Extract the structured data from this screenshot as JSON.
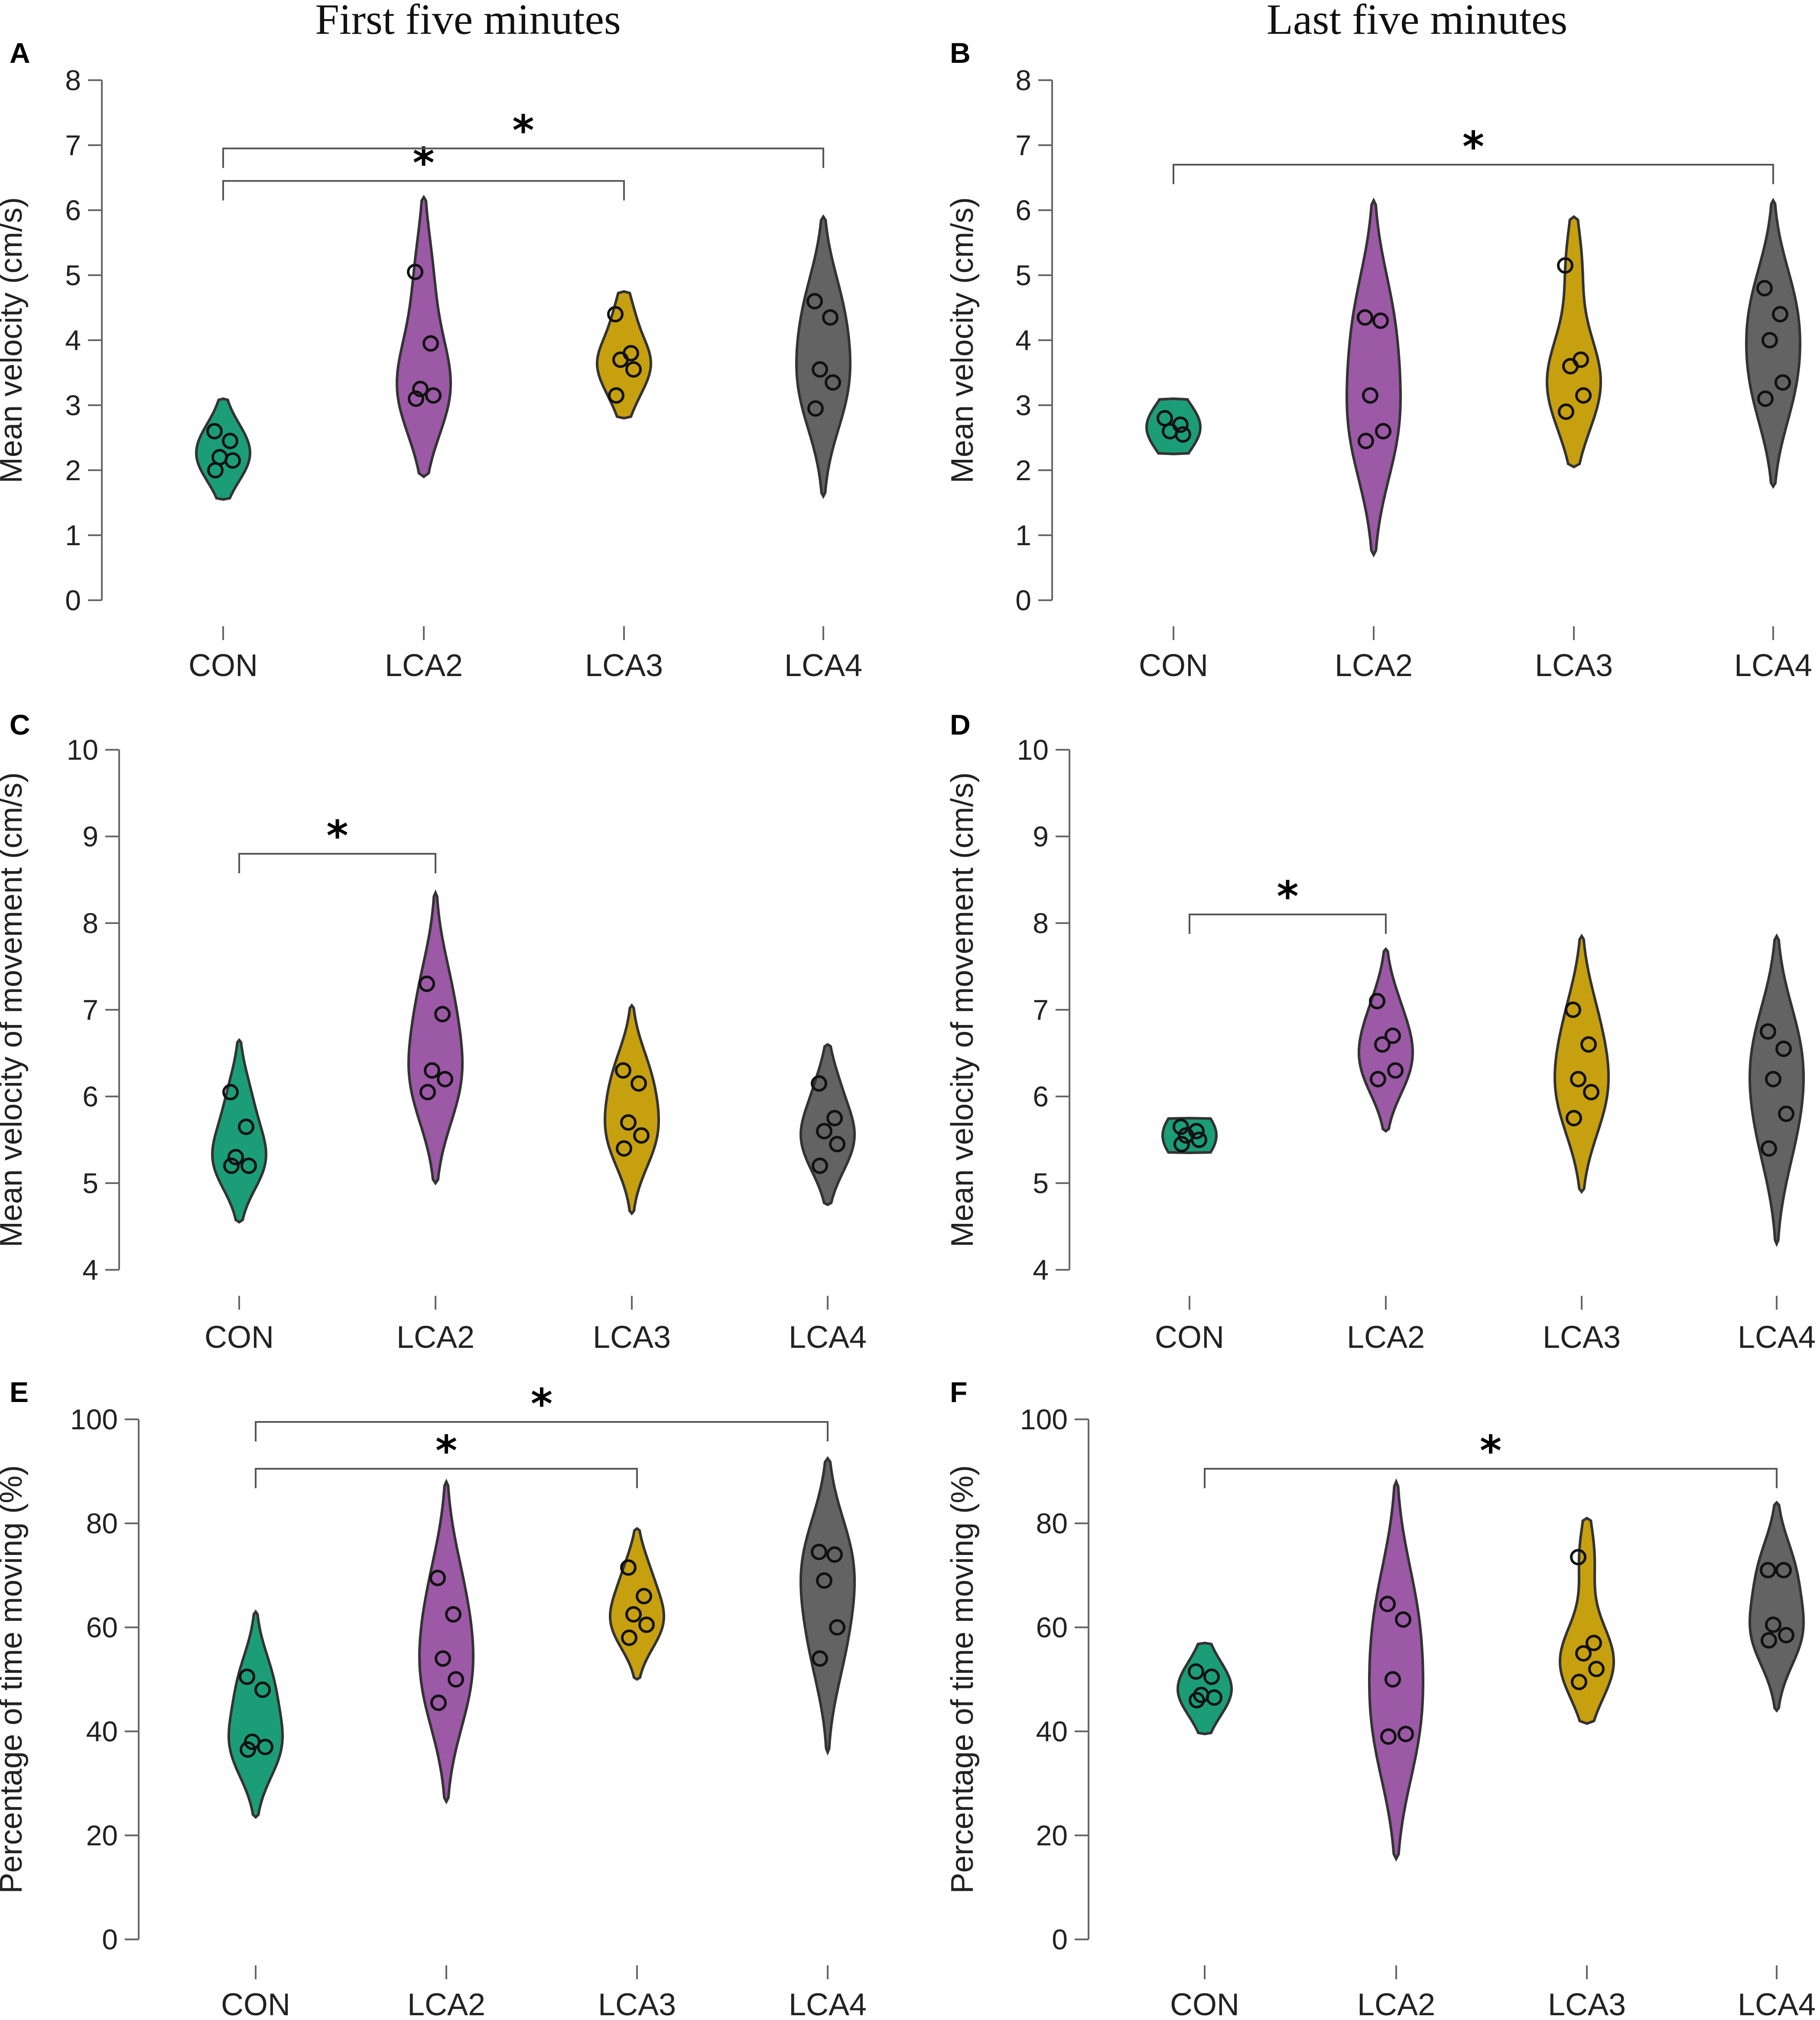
{
  "figure": {
    "column_titles": [
      "First five minutes",
      "Last five minutes"
    ]
  },
  "chart_data": [
    {
      "panel": "A",
      "type": "violin",
      "ylabel": "Mean velocity (cm/s)",
      "ylim": [
        0,
        8
      ],
      "yticks": [
        0,
        1,
        2,
        3,
        4,
        5,
        6,
        7,
        8
      ],
      "categories": [
        "CON",
        "LCA2",
        "LCA3",
        "LCA4"
      ],
      "colors": [
        "#1b9e77",
        "#9b59a6",
        "#c6a00f",
        "#636363"
      ],
      "series": [
        {
          "name": "CON",
          "points": [
            2.6,
            2.45,
            2.2,
            2.15,
            2.0
          ],
          "range": [
            1.55,
            3.1
          ]
        },
        {
          "name": "LCA2",
          "points": [
            5.05,
            3.95,
            3.25,
            3.15,
            3.1
          ],
          "range": [
            1.9,
            6.2
          ]
        },
        {
          "name": "LCA3",
          "points": [
            4.4,
            3.8,
            3.7,
            3.55,
            3.15
          ],
          "range": [
            2.8,
            4.75
          ]
        },
        {
          "name": "LCA4",
          "points": [
            4.6,
            4.35,
            3.55,
            3.35,
            2.95
          ],
          "range": [
            1.6,
            5.9
          ]
        }
      ],
      "significance": [
        {
          "from": "CON",
          "to": "LCA3",
          "label": "*",
          "y": 6.45
        },
        {
          "from": "CON",
          "to": "LCA4",
          "label": "*",
          "y": 6.95
        }
      ]
    },
    {
      "panel": "B",
      "type": "violin",
      "ylabel": "Mean velocity (cm/s)",
      "ylim": [
        0,
        8
      ],
      "yticks": [
        0,
        1,
        2,
        3,
        4,
        5,
        6,
        7,
        8
      ],
      "categories": [
        "CON",
        "LCA2",
        "LCA3",
        "LCA4"
      ],
      "colors": [
        "#1b9e77",
        "#9b59a6",
        "#c6a00f",
        "#636363"
      ],
      "series": [
        {
          "name": "CON",
          "points": [
            2.8,
            2.7,
            2.6,
            2.55
          ],
          "range": [
            2.25,
            3.1
          ]
        },
        {
          "name": "LCA2",
          "points": [
            4.35,
            4.3,
            3.15,
            2.6,
            2.45
          ],
          "range": [
            0.7,
            6.15
          ]
        },
        {
          "name": "LCA3",
          "points": [
            5.15,
            3.7,
            3.6,
            3.15,
            2.9
          ],
          "range": [
            2.05,
            5.9
          ]
        },
        {
          "name": "LCA4",
          "points": [
            4.8,
            4.4,
            4.0,
            3.35,
            3.1
          ],
          "range": [
            1.75,
            6.15
          ]
        }
      ],
      "significance": [
        {
          "from": "CON",
          "to": "LCA4",
          "label": "*",
          "y": 6.7
        }
      ]
    },
    {
      "panel": "C",
      "type": "violin",
      "ylabel": "Mean velocity of movement (cm/s)",
      "ylim": [
        4,
        10
      ],
      "yticks": [
        4,
        5,
        6,
        7,
        8,
        9,
        10
      ],
      "categories": [
        "CON",
        "LCA2",
        "LCA3",
        "LCA4"
      ],
      "colors": [
        "#1b9e77",
        "#9b59a6",
        "#c6a00f",
        "#636363"
      ],
      "series": [
        {
          "name": "CON",
          "points": [
            6.05,
            5.65,
            5.3,
            5.2,
            5.2
          ],
          "range": [
            4.55,
            6.65
          ]
        },
        {
          "name": "LCA2",
          "points": [
            7.3,
            6.95,
            6.3,
            6.2,
            6.05
          ],
          "range": [
            5.0,
            8.35
          ]
        },
        {
          "name": "LCA3",
          "points": [
            6.3,
            6.15,
            5.7,
            5.55,
            5.4
          ],
          "range": [
            4.65,
            7.05
          ]
        },
        {
          "name": "LCA4",
          "points": [
            6.15,
            5.75,
            5.6,
            5.45,
            5.2
          ],
          "range": [
            4.75,
            6.6
          ]
        }
      ],
      "significance": [
        {
          "from": "CON",
          "to": "LCA2",
          "label": "*",
          "y": 8.8
        }
      ]
    },
    {
      "panel": "D",
      "type": "violin",
      "ylabel": "Mean velocity of movement (cm/s)",
      "ylim": [
        4,
        10
      ],
      "yticks": [
        4,
        5,
        6,
        7,
        8,
        9,
        10
      ],
      "categories": [
        "CON",
        "LCA2",
        "LCA3",
        "LCA4"
      ],
      "colors": [
        "#1b9e77",
        "#9b59a6",
        "#c6a00f",
        "#636363"
      ],
      "series": [
        {
          "name": "CON",
          "points": [
            5.65,
            5.6,
            5.55,
            5.5,
            5.45
          ],
          "range": [
            5.35,
            5.75
          ]
        },
        {
          "name": "LCA2",
          "points": [
            7.1,
            6.7,
            6.6,
            6.3,
            6.2
          ],
          "range": [
            5.6,
            7.7
          ]
        },
        {
          "name": "LCA3",
          "points": [
            7.0,
            6.6,
            6.2,
            6.05,
            5.75
          ],
          "range": [
            4.9,
            7.85
          ]
        },
        {
          "name": "LCA4",
          "points": [
            6.75,
            6.55,
            6.2,
            5.8,
            5.4
          ],
          "range": [
            4.3,
            7.85
          ]
        }
      ],
      "significance": [
        {
          "from": "CON",
          "to": "LCA2",
          "label": "*",
          "y": 8.1
        }
      ]
    },
    {
      "panel": "E",
      "type": "violin",
      "ylabel": "Percentage of time moving (%)",
      "ylim": [
        0,
        100
      ],
      "yticks": [
        0,
        20,
        40,
        60,
        80,
        100
      ],
      "categories": [
        "CON",
        "LCA2",
        "LCA3",
        "LCA4"
      ],
      "colors": [
        "#1b9e77",
        "#9b59a6",
        "#c6a00f",
        "#636363"
      ],
      "series": [
        {
          "name": "CON",
          "points": [
            50.5,
            48,
            38,
            37,
            36.5
          ],
          "range": [
            23.5,
            63
          ]
        },
        {
          "name": "LCA2",
          "points": [
            69.5,
            62.5,
            54,
            50,
            45.5
          ],
          "range": [
            26.5,
            88
          ]
        },
        {
          "name": "LCA3",
          "points": [
            71.5,
            66,
            62.5,
            60.5,
            58
          ],
          "range": [
            50,
            79
          ]
        },
        {
          "name": "LCA4",
          "points": [
            74.5,
            74,
            69,
            60,
            54
          ],
          "range": [
            36,
            92.5
          ]
        }
      ],
      "significance": [
        {
          "from": "CON",
          "to": "LCA3",
          "label": "*",
          "y": 90.5
        },
        {
          "from": "CON",
          "to": "LCA4",
          "label": "*",
          "y": 99.5
        }
      ]
    },
    {
      "panel": "F",
      "type": "violin",
      "ylabel": "Percentage of time moving (%)",
      "ylim": [
        0,
        100
      ],
      "yticks": [
        0,
        20,
        40,
        60,
        80,
        100
      ],
      "categories": [
        "CON",
        "LCA2",
        "LCA3",
        "LCA4"
      ],
      "colors": [
        "#1b9e77",
        "#9b59a6",
        "#c6a00f",
        "#636363"
      ],
      "series": [
        {
          "name": "CON",
          "points": [
            51.5,
            50.5,
            47,
            46.5,
            46
          ],
          "range": [
            39.5,
            57
          ]
        },
        {
          "name": "LCA2",
          "points": [
            64.5,
            61.5,
            50,
            39.5,
            39
          ],
          "range": [
            15.5,
            88
          ]
        },
        {
          "name": "LCA3",
          "points": [
            73.5,
            57,
            55,
            52,
            49.5
          ],
          "range": [
            41.5,
            81
          ]
        },
        {
          "name": "LCA4",
          "points": [
            71,
            71,
            60.5,
            58.5,
            57.5
          ],
          "range": [
            44,
            84
          ]
        }
      ],
      "significance": [
        {
          "from": "CON",
          "to": "LCA4",
          "label": "*",
          "y": 90.5
        }
      ]
    }
  ]
}
